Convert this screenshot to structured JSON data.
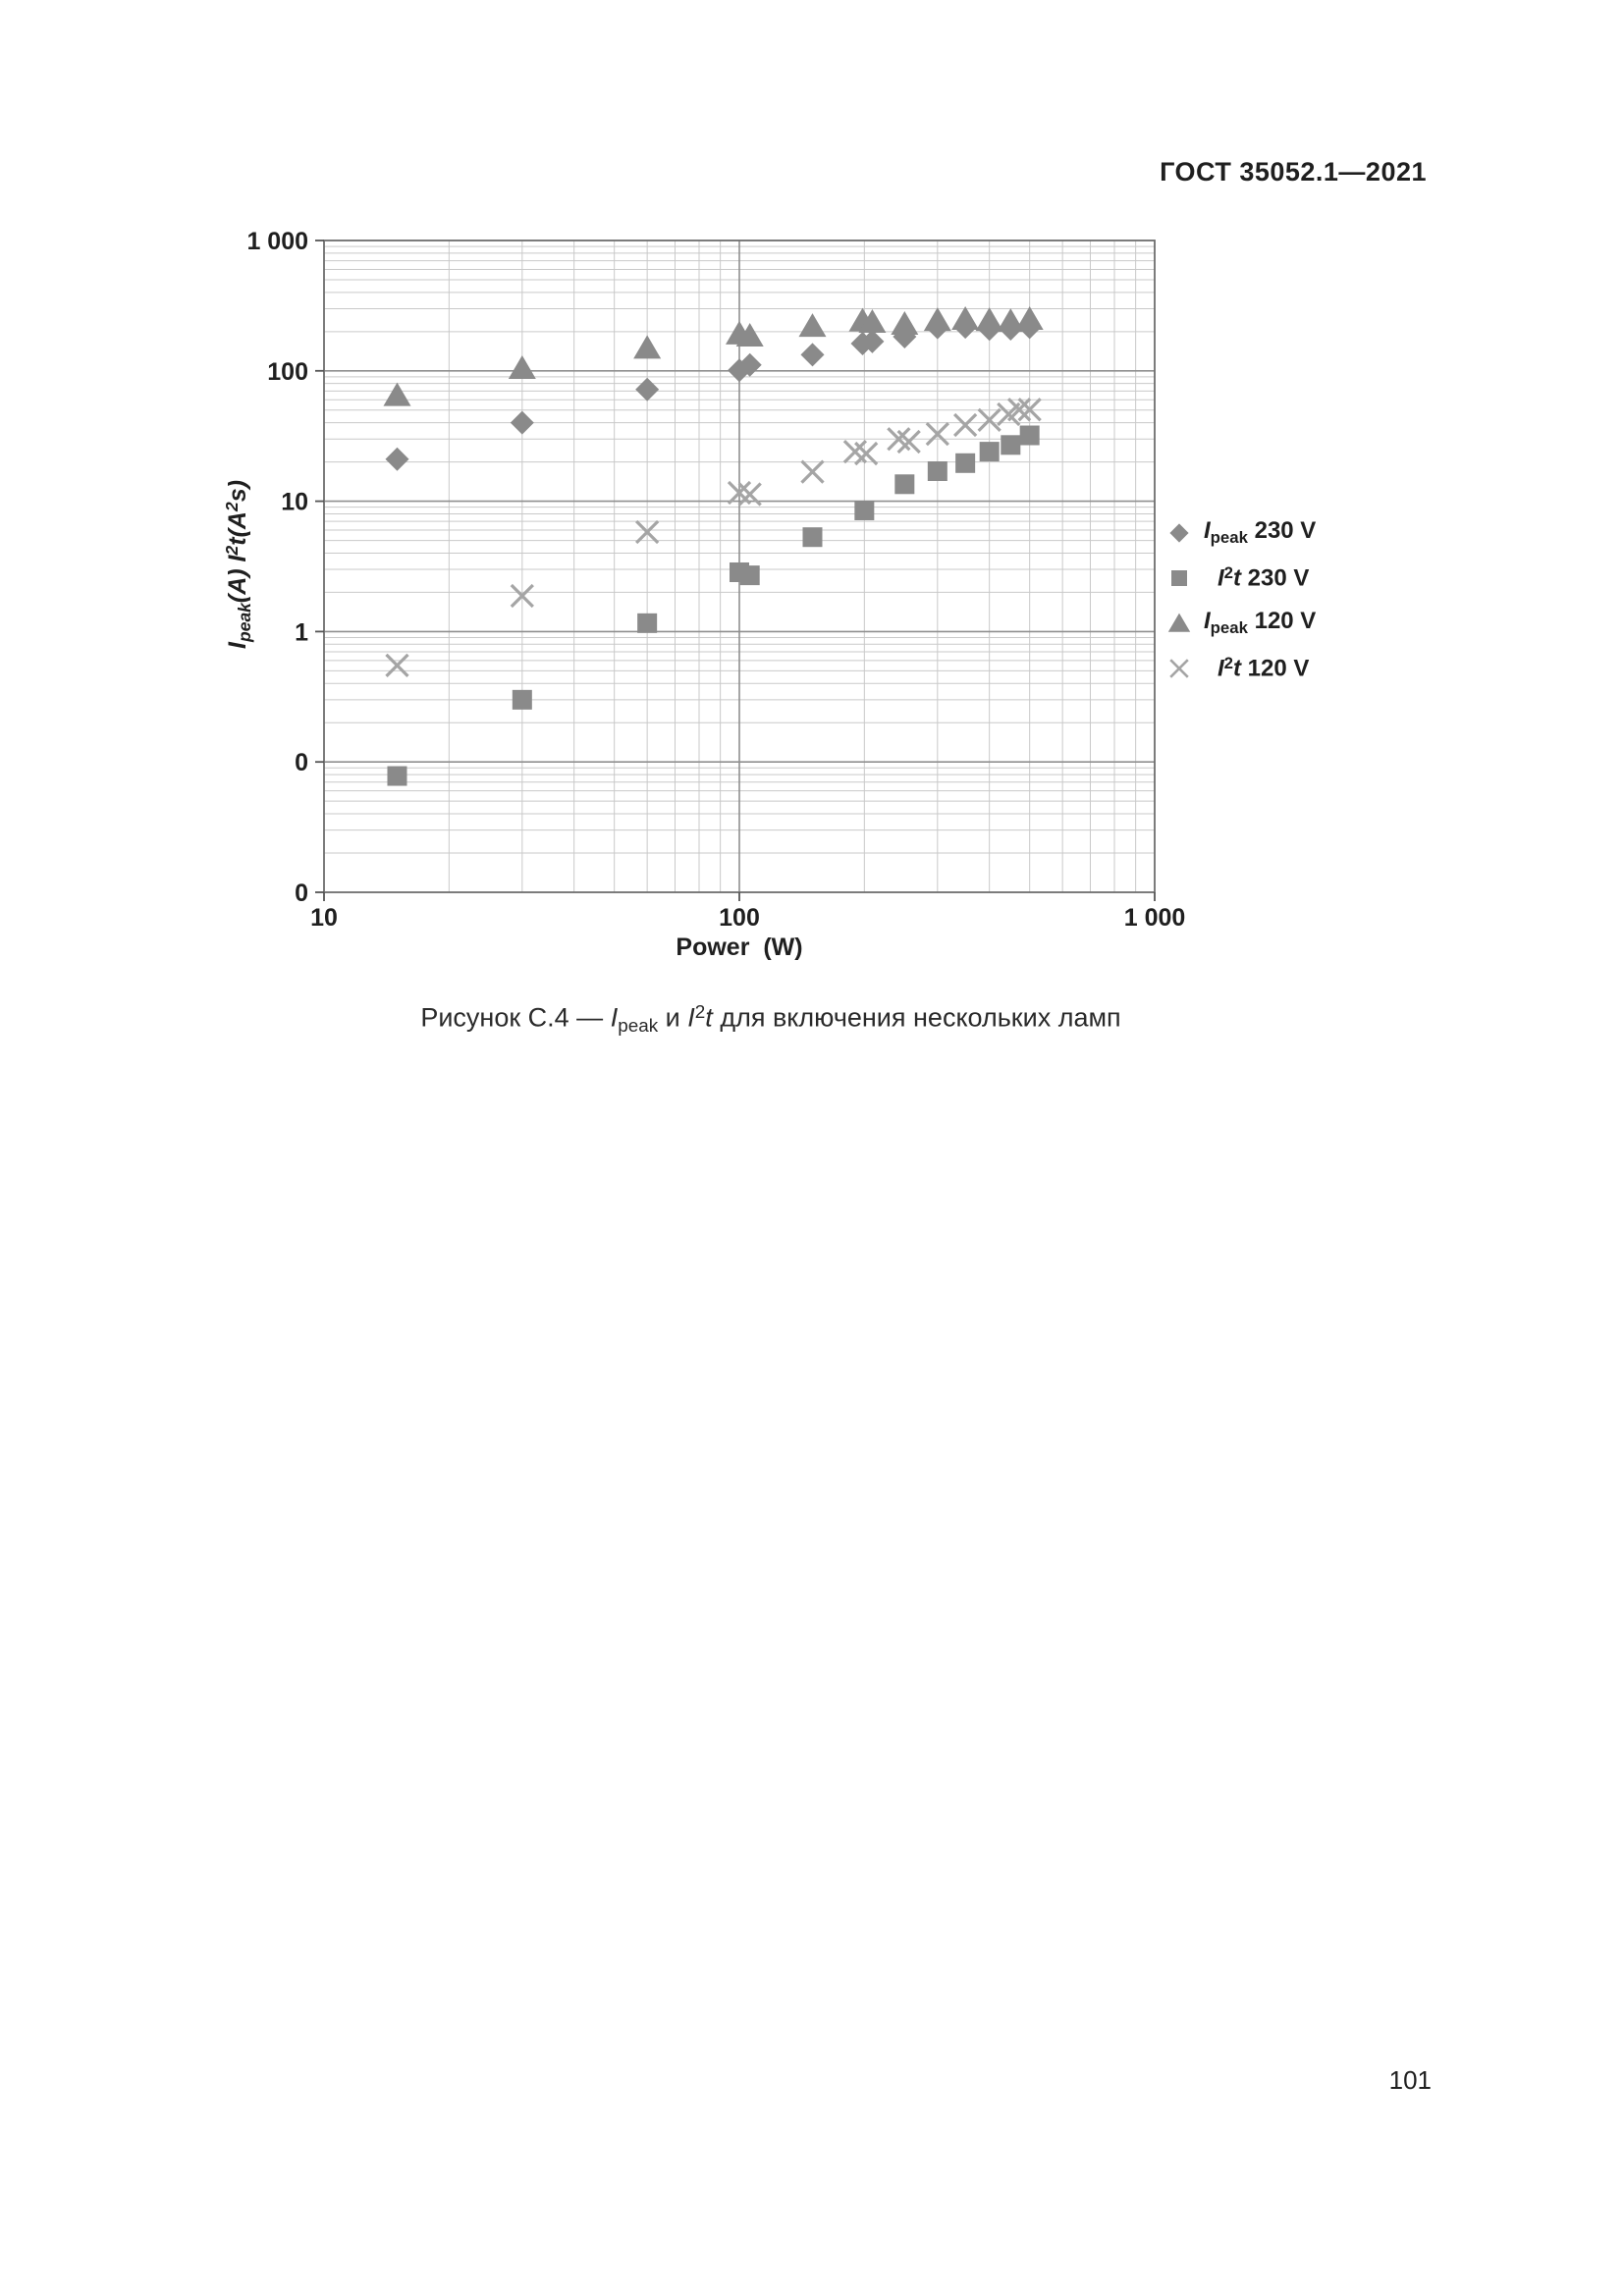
{
  "page": {
    "header_title": "ГОСТ 35052.1—2021",
    "page_number": "101"
  },
  "caption": {
    "text": "Рисунок С.4 — Ipeak и I²t для включения нескольких ламп",
    "parts": [
      {
        "t": "Рисунок С.4 — "
      },
      {
        "t": "I",
        "s": "i"
      },
      {
        "t": "peak",
        "s": "sub"
      },
      {
        "t": " и "
      },
      {
        "t": "I",
        "s": "i"
      },
      {
        "t": "2",
        "s": "sup"
      },
      {
        "t": "t",
        "s": "i"
      },
      {
        "t": " для включения нескольких ламп"
      }
    ]
  },
  "chart_data": {
    "type": "scatter",
    "grid": "log-log, minor gridlines on",
    "legend_position": "right",
    "x_axis": {
      "label": "Power  (W)",
      "scale": "log",
      "min": 10,
      "max": 1000,
      "tick_values": [
        10,
        100,
        1000
      ],
      "tick_labels": [
        "10",
        "100",
        "1 000"
      ]
    },
    "y_axis": {
      "label_text": "Ipeak(A) I²t(A²s)",
      "scale": "log",
      "min": 0.01,
      "max": 1000,
      "tick_values": [
        1000,
        100,
        10,
        1,
        0.1,
        0.01
      ],
      "tick_labels": [
        "1 000",
        "100",
        "10",
        "1",
        "0",
        "0"
      ],
      "label_parts": [
        {
          "t": "I",
          "s": "i"
        },
        {
          "t": "peak",
          "s": "sub"
        },
        {
          "t": "(A) "
        },
        {
          "t": "I",
          "s": "i"
        },
        {
          "t": "2",
          "s": "sup"
        },
        {
          "t": "t",
          "s": "i"
        },
        {
          "t": "(A"
        },
        {
          "t": "2",
          "s": "sup"
        },
        {
          "t": "s)"
        }
      ]
    },
    "series": [
      {
        "name": "Ipeak 230 V",
        "marker": "diamond",
        "color": "#8a8a8a",
        "label_parts": [
          {
            "t": "I",
            "s": "i"
          },
          {
            "t": "peak",
            "s": "sub"
          },
          {
            "t": " 230 V"
          }
        ],
        "points": [
          [
            15,
            21
          ],
          [
            30,
            40
          ],
          [
            60,
            72
          ],
          [
            100,
            101
          ],
          [
            106,
            111
          ],
          [
            150,
            133
          ],
          [
            198,
            162
          ],
          [
            209,
            168
          ],
          [
            250,
            183
          ],
          [
            300,
            215
          ],
          [
            350,
            217
          ],
          [
            400,
            209
          ],
          [
            450,
            210
          ],
          [
            500,
            216
          ]
        ]
      },
      {
        "name": "I²t 230 V",
        "marker": "square",
        "color": "#8a8a8a",
        "label_parts": [
          {
            "t": "I",
            "s": "i"
          },
          {
            "t": "2",
            "s": "sup"
          },
          {
            "t": "t",
            "s": "i"
          },
          {
            "t": " 230 V"
          }
        ],
        "points": [
          [
            15,
            0.078
          ],
          [
            30,
            0.3
          ],
          [
            60,
            1.16
          ],
          [
            100,
            2.85
          ],
          [
            106,
            2.7
          ],
          [
            150,
            5.3
          ],
          [
            200,
            8.5
          ],
          [
            250,
            13.5
          ],
          [
            300,
            17
          ],
          [
            350,
            19.6
          ],
          [
            400,
            24
          ],
          [
            450,
            27
          ],
          [
            500,
            32
          ]
        ]
      },
      {
        "name": "Ipeak 120 V",
        "marker": "triangle",
        "color": "#8a8a8a",
        "label_parts": [
          {
            "t": "I",
            "s": "i"
          },
          {
            "t": "peak",
            "s": "sub"
          },
          {
            "t": " 120 V"
          }
        ],
        "points": [
          [
            15,
            65
          ],
          [
            30,
            105
          ],
          [
            60,
            150
          ],
          [
            100,
            193
          ],
          [
            106,
            186
          ],
          [
            150,
            221
          ],
          [
            198,
            243
          ],
          [
            209,
            237
          ],
          [
            250,
            229
          ],
          [
            300,
            245
          ],
          [
            350,
            250
          ],
          [
            400,
            245
          ],
          [
            450,
            241
          ],
          [
            500,
            250
          ]
        ]
      },
      {
        "name": "I²t 120 V",
        "marker": "x",
        "color": "#a5a5a5",
        "label_parts": [
          {
            "t": "I",
            "s": "i"
          },
          {
            "t": "2",
            "s": "sup"
          },
          {
            "t": "t",
            "s": "i"
          },
          {
            "t": " 120 V"
          }
        ],
        "points": [
          [
            15,
            0.55
          ],
          [
            30,
            1.88
          ],
          [
            60,
            5.8
          ],
          [
            100,
            11.6
          ],
          [
            106,
            11.3
          ],
          [
            150,
            16.8
          ],
          [
            190,
            24
          ],
          [
            202,
            23.2
          ],
          [
            242,
            30
          ],
          [
            256,
            28.6
          ],
          [
            300,
            32.8
          ],
          [
            350,
            38.4
          ],
          [
            400,
            42
          ],
          [
            445,
            46.5
          ],
          [
            472,
            50.5
          ],
          [
            500,
            50.5
          ]
        ]
      }
    ]
  }
}
